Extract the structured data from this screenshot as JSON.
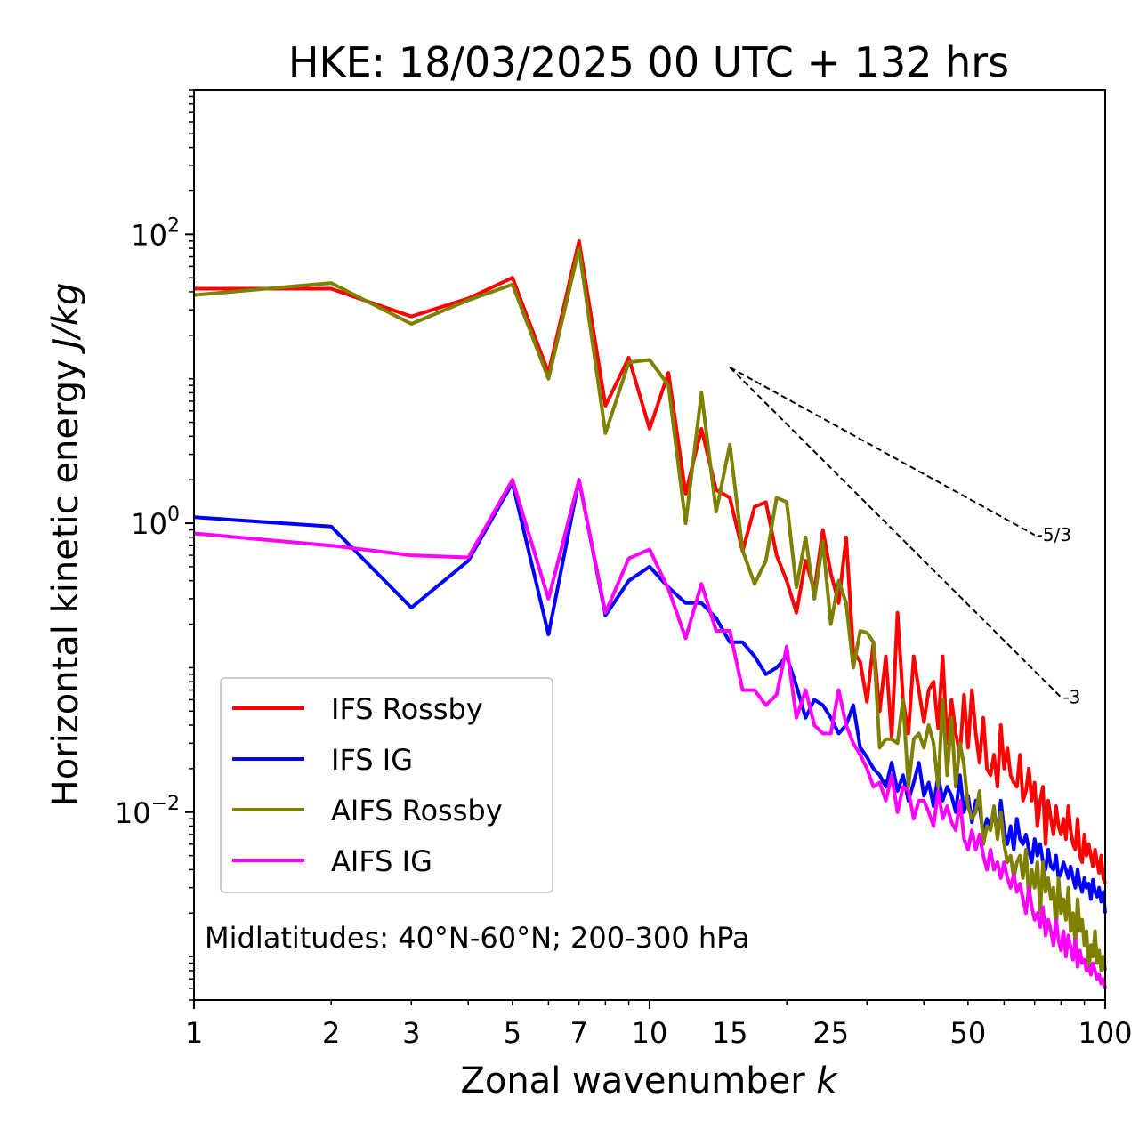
{
  "chart_data": {
    "type": "line",
    "title": "HKE: 18/03/2025 00 UTC + 132 hrs",
    "xlabel": "Zonal wavenumber",
    "xlabel_var": "k",
    "ylabel": "Horizontal kinetic energy",
    "ylabel_unit": "J/kg",
    "x_scale": "log",
    "y_scale": "log",
    "xlim": [
      1,
      100
    ],
    "ylim": [
      0.0005,
      1000
    ],
    "x_ticks": [
      1,
      2,
      3,
      5,
      7,
      10,
      15,
      25,
      50,
      100
    ],
    "x_tick_labels": [
      "1",
      "2",
      "3",
      "5",
      "7",
      "10",
      "15",
      "25",
      "50",
      "100"
    ],
    "y_ticks": [
      {
        "value": 0.01,
        "base": "10",
        "exp": "−2"
      },
      {
        "value": 1,
        "base": "10",
        "exp": "0"
      },
      {
        "value": 100,
        "base": "10",
        "exp": "2"
      }
    ],
    "grid": false,
    "legend_position": "center-left",
    "annotation": "Midlatitudes: 40°N-60°N; 200-300 hPa",
    "reference_slopes": [
      {
        "label": "-5/3",
        "x_start": 15,
        "y_start": 12,
        "x_end": 70,
        "y_end": 0.83
      },
      {
        "label": "-3",
        "x_start": 15,
        "y_start": 12,
        "x_end": 80,
        "y_end": 0.0624
      }
    ],
    "x": [
      1,
      2,
      3,
      4,
      5,
      6,
      7,
      8,
      9,
      10,
      11,
      12,
      13,
      14,
      15,
      16,
      17,
      18,
      19,
      20,
      21,
      22,
      23,
      24,
      25,
      26,
      27,
      28,
      29,
      30,
      31,
      32,
      33,
      34,
      35,
      36,
      37,
      38,
      39,
      40,
      41,
      42,
      43,
      44,
      45,
      46,
      47,
      48,
      49,
      50,
      51,
      52,
      53,
      54,
      55,
      56,
      57,
      58,
      59,
      60,
      61,
      62,
      63,
      64,
      65,
      66,
      67,
      68,
      69,
      70,
      71,
      72,
      73,
      74,
      75,
      76,
      77,
      78,
      79,
      80,
      81,
      82,
      83,
      84,
      85,
      86,
      87,
      88,
      89,
      90,
      91,
      92,
      93,
      94,
      95,
      96,
      97,
      98,
      99,
      100
    ],
    "series": [
      {
        "name": "IFS Rossby",
        "color": "#ff0000",
        "values": [
          42,
          42,
          27,
          36,
          50,
          11,
          90,
          6.5,
          14,
          4.5,
          11,
          1.6,
          4.5,
          1.7,
          1.5,
          0.64,
          1.3,
          1.4,
          0.6,
          0.4,
          0.24,
          0.55,
          0.34,
          0.9,
          0.45,
          0.28,
          0.8,
          0.13,
          0.11,
          0.058,
          0.15,
          0.05,
          0.12,
          0.033,
          0.24,
          0.06,
          0.035,
          0.12,
          0.07,
          0.042,
          0.07,
          0.08,
          0.038,
          0.12,
          0.03,
          0.06,
          0.035,
          0.025,
          0.065,
          0.028,
          0.07,
          0.035,
          0.022,
          0.045,
          0.02,
          0.018,
          0.025,
          0.015,
          0.04,
          0.02,
          0.028,
          0.018,
          0.016,
          0.015,
          0.025,
          0.012,
          0.014,
          0.02,
          0.012,
          0.016,
          0.008,
          0.012,
          0.015,
          0.006,
          0.012,
          0.009,
          0.007,
          0.011,
          0.008,
          0.007,
          0.009,
          0.0065,
          0.011,
          0.0075,
          0.006,
          0.0055,
          0.009,
          0.005,
          0.0045,
          0.007,
          0.005,
          0.006,
          0.005,
          0.0042,
          0.0055,
          0.0045,
          0.0038,
          0.005,
          0.0035,
          0.0032
        ]
      },
      {
        "name": "IFS IG",
        "color": "#0000ff",
        "values": [
          1.1,
          0.95,
          0.26,
          0.55,
          1.9,
          0.17,
          2.0,
          0.23,
          0.4,
          0.5,
          0.36,
          0.28,
          0.28,
          0.22,
          0.15,
          0.15,
          0.12,
          0.09,
          0.1,
          0.12,
          0.075,
          0.045,
          0.06,
          0.055,
          0.045,
          0.035,
          0.04,
          0.055,
          0.028,
          0.024,
          0.02,
          0.018,
          0.015,
          0.022,
          0.014,
          0.018,
          0.012,
          0.016,
          0.022,
          0.013,
          0.016,
          0.011,
          0.018,
          0.012,
          0.015,
          0.013,
          0.01,
          0.018,
          0.01,
          0.013,
          0.0085,
          0.012,
          0.011,
          0.007,
          0.009,
          0.008,
          0.01,
          0.007,
          0.012,
          0.0075,
          0.006,
          0.008,
          0.0055,
          0.009,
          0.0065,
          0.006,
          0.007,
          0.0055,
          0.0045,
          0.0065,
          0.005,
          0.006,
          0.0045,
          0.004,
          0.0055,
          0.0042,
          0.004,
          0.005,
          0.0035,
          0.0038,
          0.0045,
          0.004,
          0.0035,
          0.0042,
          0.0035,
          0.003,
          0.004,
          0.0032,
          0.0028,
          0.0035,
          0.003,
          0.0032,
          0.0025,
          0.0034,
          0.0028,
          0.0026,
          0.003,
          0.0024,
          0.0028,
          0.002
        ]
      },
      {
        "name": "AIFS Rossby",
        "color": "#808000",
        "values": [
          38,
          46,
          24,
          35,
          45,
          10,
          80,
          4.2,
          13,
          13.5,
          9,
          1.0,
          8,
          1.2,
          3.5,
          0.65,
          0.38,
          0.55,
          1.5,
          1.4,
          0.36,
          0.8,
          0.3,
          0.75,
          0.2,
          0.4,
          0.28,
          0.1,
          0.18,
          0.175,
          0.15,
          0.028,
          0.032,
          0.032,
          0.03,
          0.06,
          0.015,
          0.032,
          0.035,
          0.028,
          0.04,
          0.03,
          0.015,
          0.06,
          0.018,
          0.045,
          0.015,
          0.03,
          0.021,
          0.011,
          0.009,
          0.01,
          0.014,
          0.006,
          0.008,
          0.0075,
          0.011,
          0.0065,
          0.01,
          0.006,
          0.0045,
          0.005,
          0.0035,
          0.0045,
          0.005,
          0.0035,
          0.0055,
          0.0025,
          0.004,
          0.003,
          0.0045,
          0.002,
          0.0045,
          0.0028,
          0.0035,
          0.0025,
          0.003,
          0.0015,
          0.0035,
          0.002,
          0.0025,
          0.0018,
          0.003,
          0.0015,
          0.002,
          0.0012,
          0.0025,
          0.0015,
          0.0018,
          0.0012,
          0.0015,
          0.0008,
          0.0012,
          0.001,
          0.0015,
          0.0009,
          0.0011,
          0.0008,
          0.001,
          0.0008
        ]
      },
      {
        "name": "AIFS IG",
        "color": "#ff00ff",
        "values": [
          0.85,
          0.7,
          0.6,
          0.58,
          2.0,
          0.3,
          2.0,
          0.24,
          0.57,
          0.66,
          0.35,
          0.16,
          0.38,
          0.18,
          0.18,
          0.07,
          0.07,
          0.055,
          0.065,
          0.14,
          0.045,
          0.07,
          0.04,
          0.035,
          0.035,
          0.07,
          0.04,
          0.03,
          0.025,
          0.02,
          0.015,
          0.016,
          0.012,
          0.018,
          0.01,
          0.015,
          0.014,
          0.009,
          0.012,
          0.012,
          0.01,
          0.008,
          0.014,
          0.009,
          0.011,
          0.0085,
          0.0075,
          0.012,
          0.0065,
          0.0055,
          0.0075,
          0.0055,
          0.007,
          0.005,
          0.004,
          0.0055,
          0.004,
          0.0045,
          0.0035,
          0.0045,
          0.0035,
          0.003,
          0.0037,
          0.0028,
          0.0032,
          0.0025,
          0.002,
          0.003,
          0.0022,
          0.0018,
          0.002,
          0.0016,
          0.0022,
          0.0014,
          0.0018,
          0.0015,
          0.0012,
          0.0018,
          0.0013,
          0.0011,
          0.0015,
          0.001,
          0.0014,
          0.00115,
          0.00095,
          0.0013,
          0.00085,
          0.0011,
          0.0009,
          0.00095,
          0.0008,
          0.00085,
          0.00075,
          0.0009,
          0.0008,
          0.0007,
          0.00075,
          0.00065,
          0.0007,
          0.0006
        ]
      }
    ]
  }
}
